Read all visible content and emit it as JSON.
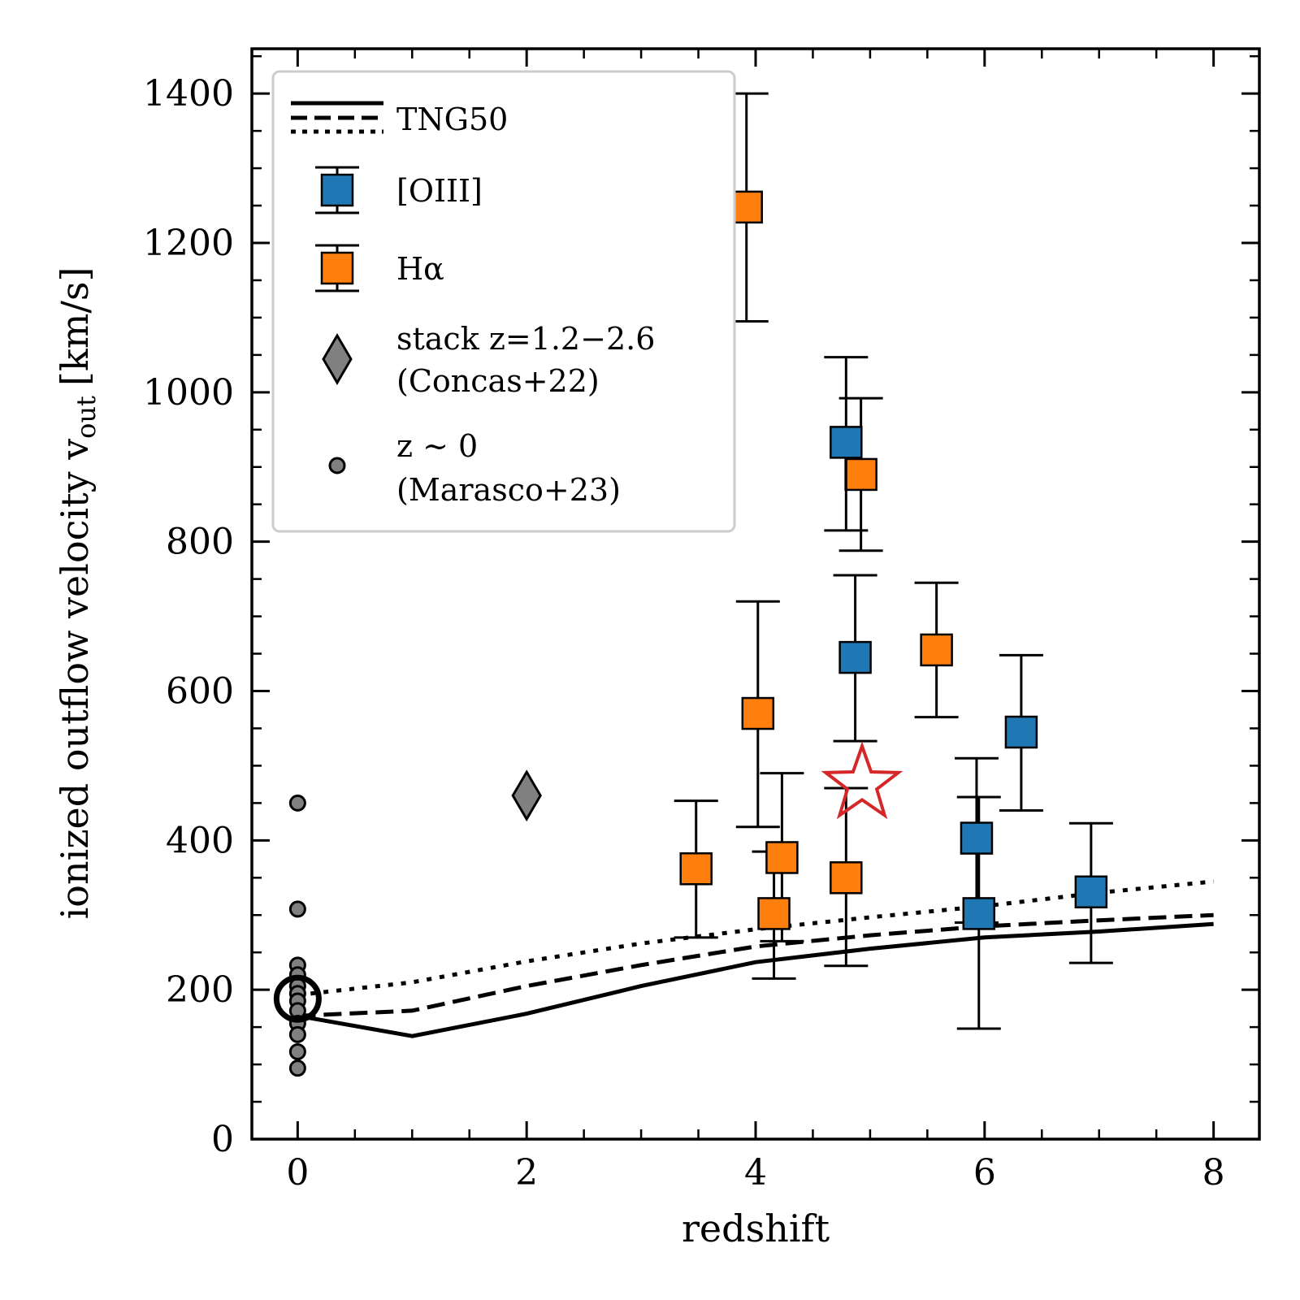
{
  "chart_data": {
    "type": "scatter",
    "title": "",
    "xlabel": "redshift",
    "ylabel_text": "ionized outflow velocity v",
    "ylabel_sub": "out",
    "ylabel_units": "[km/s]",
    "xlim": [
      -0.4,
      8.4
    ],
    "ylim": [
      0,
      1460
    ],
    "xticks": [
      0,
      2,
      4,
      6,
      8
    ],
    "yticks": [
      0,
      200,
      400,
      600,
      800,
      1000,
      1200,
      1400
    ],
    "colors": {
      "oiii": "#1f77b4",
      "halpha": "#ff7f0e",
      "stack": "#808080",
      "lowz": "#808080",
      "star": "#d62728"
    },
    "legend": {
      "location": "upper-left",
      "entries": [
        {
          "key": "tng",
          "label": "TNG50"
        },
        {
          "key": "oiii",
          "label": "[OIII]"
        },
        {
          "key": "halpha",
          "label": "Hα"
        },
        {
          "key": "stack",
          "label": "stack z=1.2−2.6",
          "label2": "(Concas+22)"
        },
        {
          "key": "lowz",
          "label": "z ∼ 0",
          "label2": "(Marasco+23)"
        }
      ]
    },
    "tng50": [
      {
        "name": "TNG50 solid",
        "style": "solid",
        "x": [
          0,
          1,
          2,
          3,
          4,
          5,
          6,
          7,
          8
        ],
        "y": [
          165,
          138,
          168,
          205,
          237,
          255,
          270,
          278,
          288
        ]
      },
      {
        "name": "TNG50 dashed",
        "style": "dashed",
        "x": [
          0,
          1,
          2,
          3,
          4,
          5,
          6,
          7,
          8
        ],
        "y": [
          165,
          172,
          205,
          233,
          258,
          273,
          285,
          293,
          300
        ]
      },
      {
        "name": "TNG50 dotted",
        "style": "dotted",
        "x": [
          0,
          1,
          2,
          3,
          4,
          5,
          6,
          7,
          8
        ],
        "y": [
          193,
          210,
          238,
          262,
          281,
          297,
          312,
          330,
          345
        ]
      }
    ],
    "oiii": [
      {
        "x": 4.79,
        "y": 933,
        "ylo": 815,
        "yhi": 1047
      },
      {
        "x": 4.87,
        "y": 645,
        "ylo": 533,
        "yhi": 755
      },
      {
        "x": 5.93,
        "y": 403,
        "ylo": 290,
        "yhi": 510
      },
      {
        "x": 5.95,
        "y": 302,
        "ylo": 148,
        "yhi": 458
      },
      {
        "x": 6.32,
        "y": 545,
        "ylo": 440,
        "yhi": 648
      },
      {
        "x": 6.93,
        "y": 331,
        "ylo": 236,
        "yhi": 423
      }
    ],
    "halpha": [
      {
        "x": 3.92,
        "y": 1248,
        "ylo": 1095,
        "yhi": 1400
      },
      {
        "x": 4.92,
        "y": 890,
        "ylo": 788,
        "yhi": 992
      },
      {
        "x": 5.58,
        "y": 655,
        "ylo": 565,
        "yhi": 745
      },
      {
        "x": 4.02,
        "y": 570,
        "ylo": 418,
        "yhi": 720
      },
      {
        "x": 3.48,
        "y": 362,
        "ylo": 270,
        "yhi": 453
      },
      {
        "x": 4.23,
        "y": 377,
        "ylo": 265,
        "yhi": 490
      },
      {
        "x": 4.79,
        "y": 350,
        "ylo": 232,
        "yhi": 470
      },
      {
        "x": 4.16,
        "y": 302,
        "ylo": 215,
        "yhi": 385
      }
    ],
    "stack": [
      {
        "x": 2.0,
        "y": 460
      }
    ],
    "lowz": {
      "x": 0,
      "y": [
        450,
        308,
        233,
        220,
        205,
        195,
        185,
        172,
        155,
        140,
        117,
        95
      ]
    },
    "lowz_median": {
      "x": 0,
      "y": 188
    },
    "star": {
      "x": 4.93,
      "y": 475
    }
  }
}
